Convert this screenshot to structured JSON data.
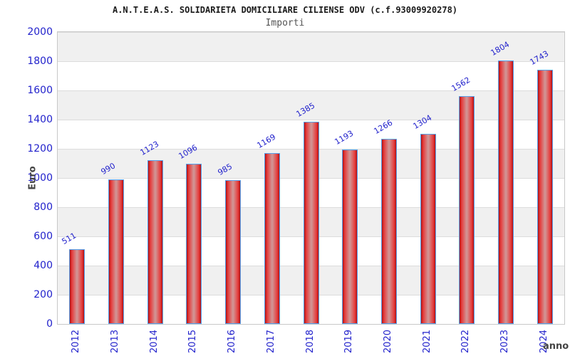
{
  "chart_data": {
    "type": "bar",
    "title": "A.N.T.E.A.S. SOLIDARIETA DOMICILIARE CILIENSE ODV (c.f.93009920278)",
    "subtitle": "Importi",
    "xlabel": "anno",
    "ylabel": "Euro",
    "categories": [
      "2012",
      "2013",
      "2014",
      "2015",
      "2016",
      "2017",
      "2018",
      "2019",
      "2020",
      "2021",
      "2022",
      "2023",
      "2024"
    ],
    "values": [
      511,
      990,
      1123,
      1096,
      985,
      1169,
      1385,
      1193,
      1266,
      1304,
      1562,
      1804,
      1743
    ],
    "ylim": [
      0,
      2000
    ],
    "yticks": [
      0,
      200,
      400,
      600,
      800,
      1000,
      1200,
      1400,
      1600,
      1800,
      2000
    ],
    "grid": "horizontal-bands-alternating",
    "legend": "none",
    "bar_label_rotation_deg": -30,
    "x_tick_rotation_deg": -90
  },
  "colors": {
    "tick_label_blue": "#2222cc",
    "value_label_blue": "#2222cc",
    "bar_border": "#54a1ec",
    "bar_edge_red": "#b31111",
    "bar_mid_red": "#e63c3c",
    "bar_center_light": "#d29292",
    "band_gray": "#f0f0f0",
    "grid_line": "#dcdcdc",
    "plot_border": "#c8c8c8",
    "title_color": "#1a1a1a",
    "subtitle_color": "#555555",
    "axis_title_color": "#444444",
    "background": "#ffffff"
  }
}
